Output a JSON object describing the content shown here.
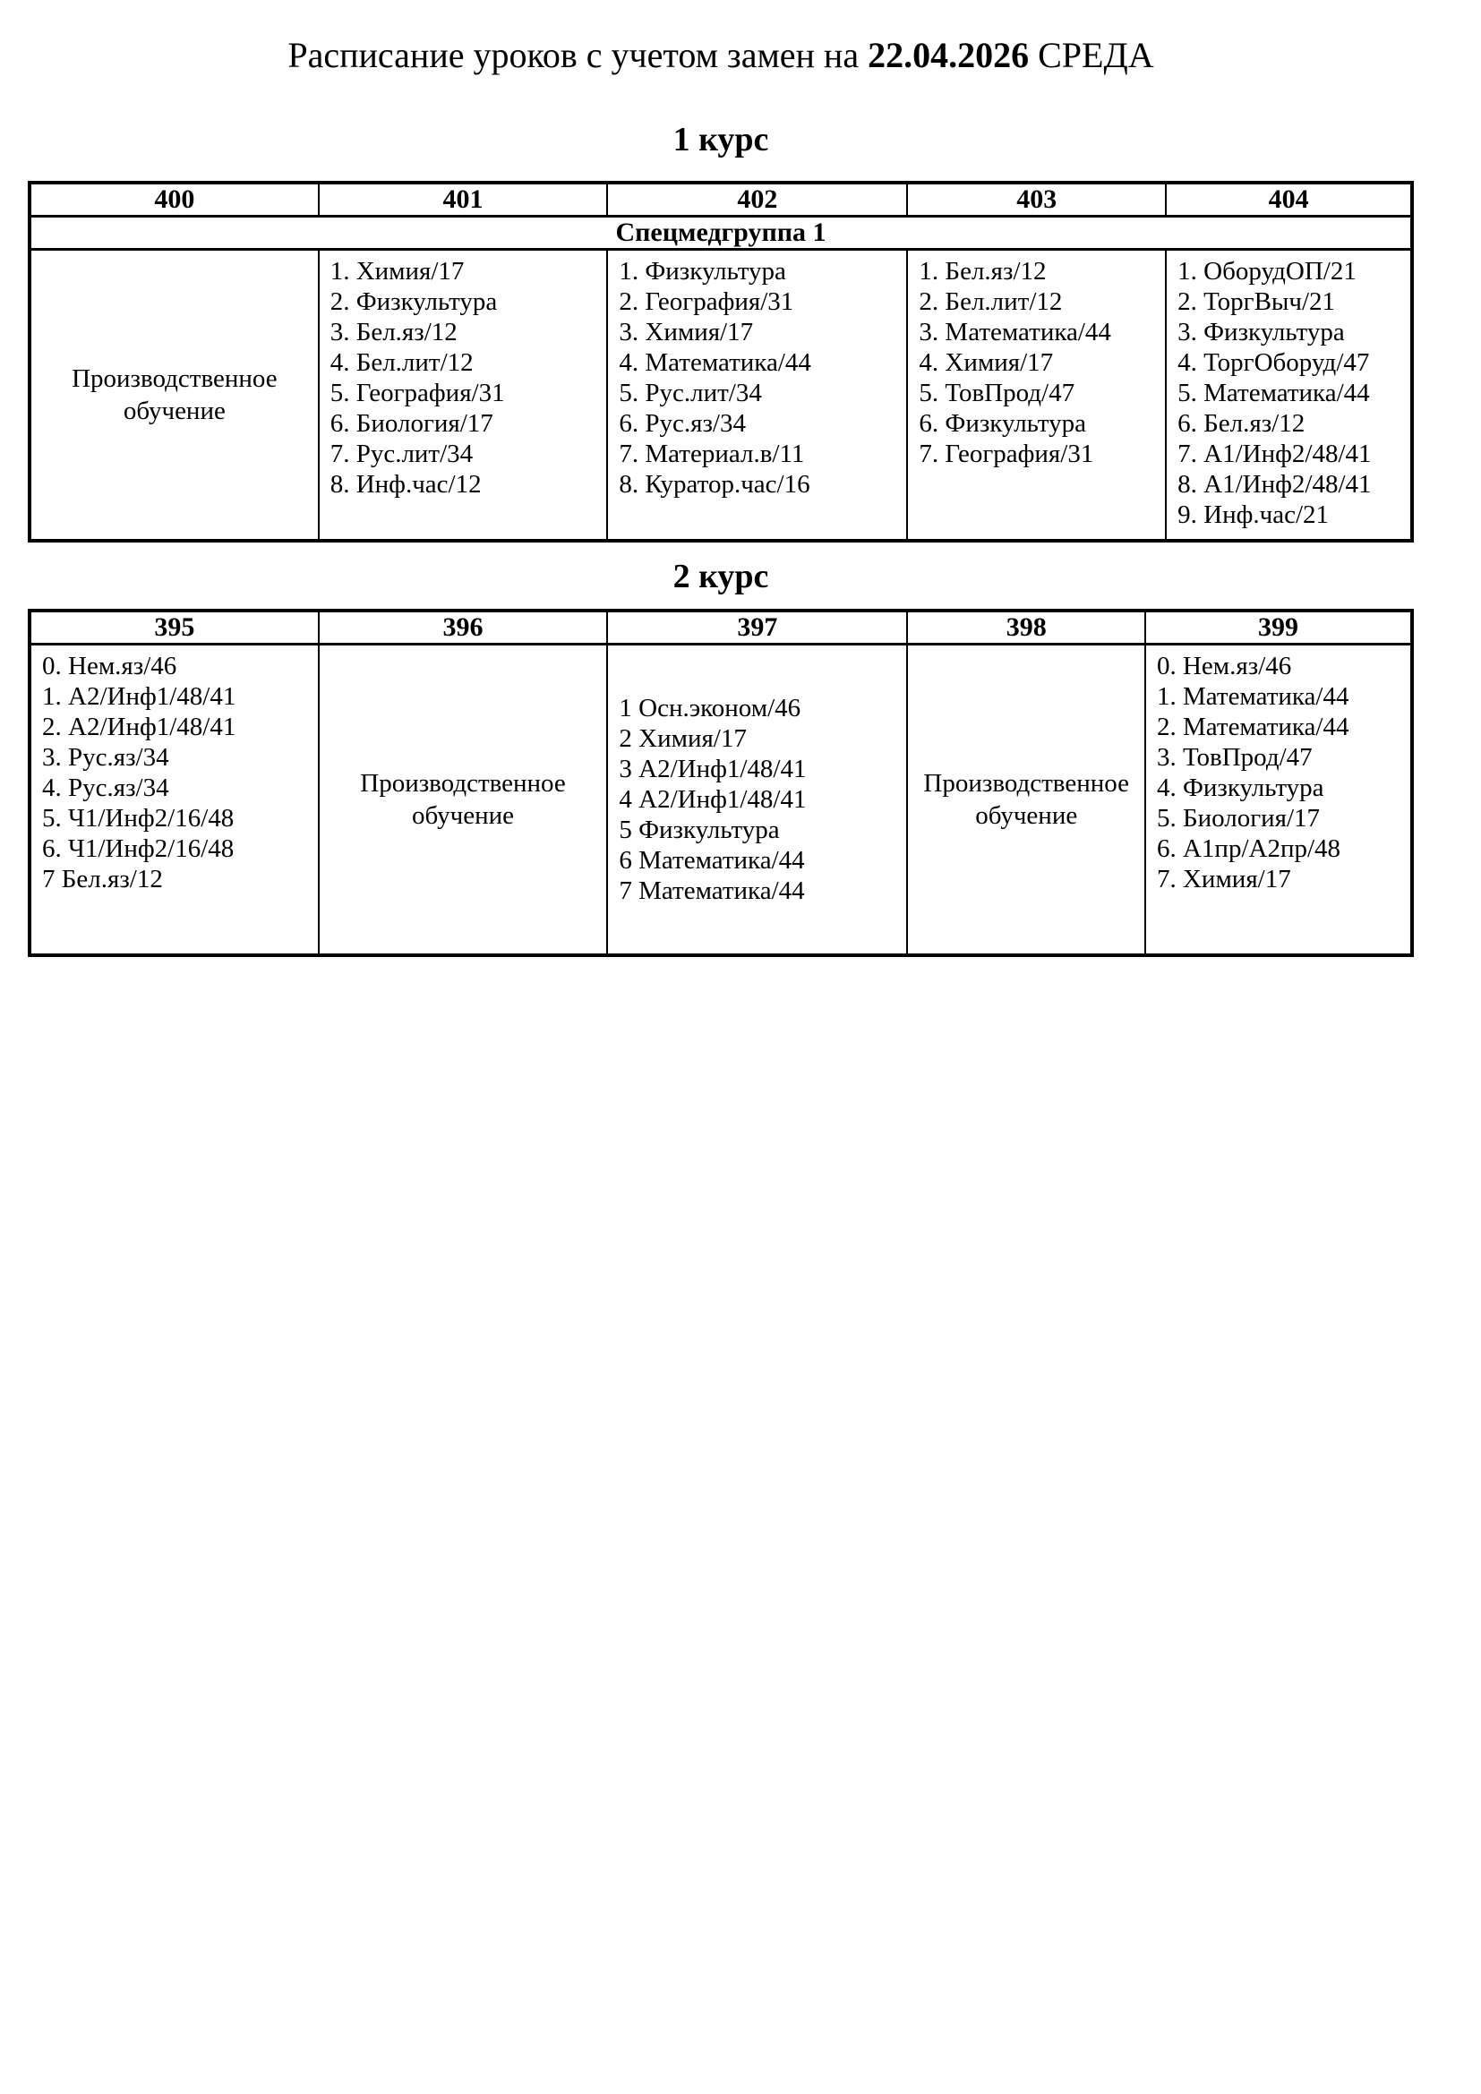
{
  "title": {
    "prefix": "Расписание уроков с учетом замен на ",
    "date": "22.04.2026",
    "suffix": " СРЕДА"
  },
  "course1": {
    "heading": "1 курс",
    "group_headers": [
      "400",
      "401",
      "402",
      "403",
      "404"
    ],
    "subheader": "Спецмедгруппа 1",
    "col400_text": "Производственное обучение",
    "col401": [
      "1. Химия/17",
      "2. Физкультура",
      "3. Бел.яз/12",
      "4. Бел.лит/12",
      "5. География/31",
      "6. Биология/17",
      "7. Рус.лит/34",
      "8. Инф.час/12"
    ],
    "col402": [
      "1. Физкультура",
      "2. География/31",
      "3. Химия/17",
      "4. Математика/44",
      "5. Рус.лит/34",
      "6. Рус.яз/34",
      "7. Материал.в/11",
      "8. Куратор.час/16"
    ],
    "col403": [
      "1. Бел.яз/12",
      "2. Бел.лит/12",
      "3. Математика/44",
      "4. Химия/17",
      "5. ТовПрод/47",
      "6. Физкультура",
      "7. География/31"
    ],
    "col404": [
      "1. ОборудОП/21",
      "2. ТоргВыч/21",
      "3. Физкультура",
      "4. ТоргОборуд/47",
      "5. Математика/44",
      "6. Бел.яз/12",
      "7. А1/Инф2/48/41",
      "8. А1/Инф2/48/41",
      "9. Инф.час/21"
    ]
  },
  "course2": {
    "heading": "2 курс",
    "group_headers": [
      "395",
      "396",
      "397",
      "398",
      "399"
    ],
    "col395": [
      "0. Нем.яз/46",
      "1. А2/Инф1/48/41",
      "2. А2/Инф1/48/41",
      "3. Рус.яз/34",
      "4. Рус.яз/34",
      "5. Ч1/Инф2/16/48",
      "6. Ч1/Инф2/16/48",
      "7 Бел.яз/12"
    ],
    "col396_text": "Производственное обучение",
    "col397": [
      "1 Осн.эконом/46",
      "2 Химия/17",
      "3 А2/Инф1/48/41",
      "4 А2/Инф1/48/41",
      "5 Физкультура",
      "6 Математика/44",
      "7 Математика/44"
    ],
    "col398_text": "Производственное обучение",
    "col399": [
      "0. Нем.яз/46",
      "1. Математика/44",
      "2. Математика/44",
      "3. ТовПрод/47",
      "4. Физкультура",
      "5. Биология/17",
      "6. А1пр/А2пр/48",
      "7. Химия/17"
    ]
  }
}
